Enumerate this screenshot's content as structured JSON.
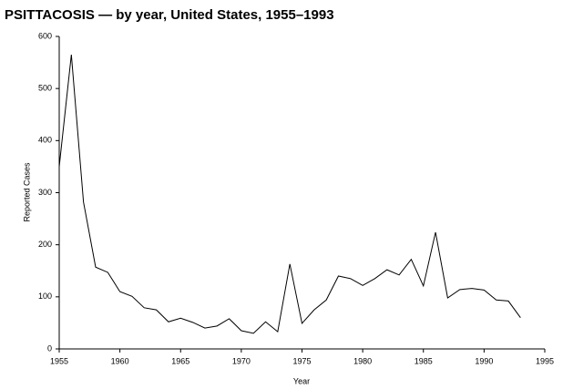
{
  "chart_data": {
    "type": "line",
    "title": "PSITTACOSIS — by year, United States, 1955–1993",
    "x_label": "Year",
    "y_label": "Reported Cases",
    "x": [
      1955,
      1956,
      1957,
      1958,
      1959,
      1960,
      1961,
      1962,
      1963,
      1964,
      1965,
      1966,
      1967,
      1968,
      1969,
      1970,
      1971,
      1972,
      1973,
      1974,
      1975,
      1976,
      1977,
      1978,
      1979,
      1980,
      1981,
      1982,
      1983,
      1984,
      1985,
      1986,
      1987,
      1988,
      1989,
      1990,
      1991,
      1992,
      1993
    ],
    "series": [
      {
        "color": "#000000",
        "values": [
          350,
          565,
          282,
          157,
          147,
          110,
          101,
          79,
          75,
          52,
          59,
          51,
          40,
          44,
          58,
          35,
          30,
          52,
          33,
          163,
          49,
          75,
          94,
          140,
          135,
          122,
          135,
          152,
          142,
          172,
          121,
          224,
          98,
          114,
          116,
          113,
          94,
          92,
          60
        ]
      }
    ],
    "xlim": [
      1955,
      1995
    ],
    "xticks": [
      1955,
      1960,
      1965,
      1970,
      1975,
      1980,
      1985,
      1990,
      1995
    ],
    "ylim": [
      0,
      600
    ],
    "yticks": [
      0,
      100,
      200,
      300,
      400,
      500,
      600
    ]
  }
}
